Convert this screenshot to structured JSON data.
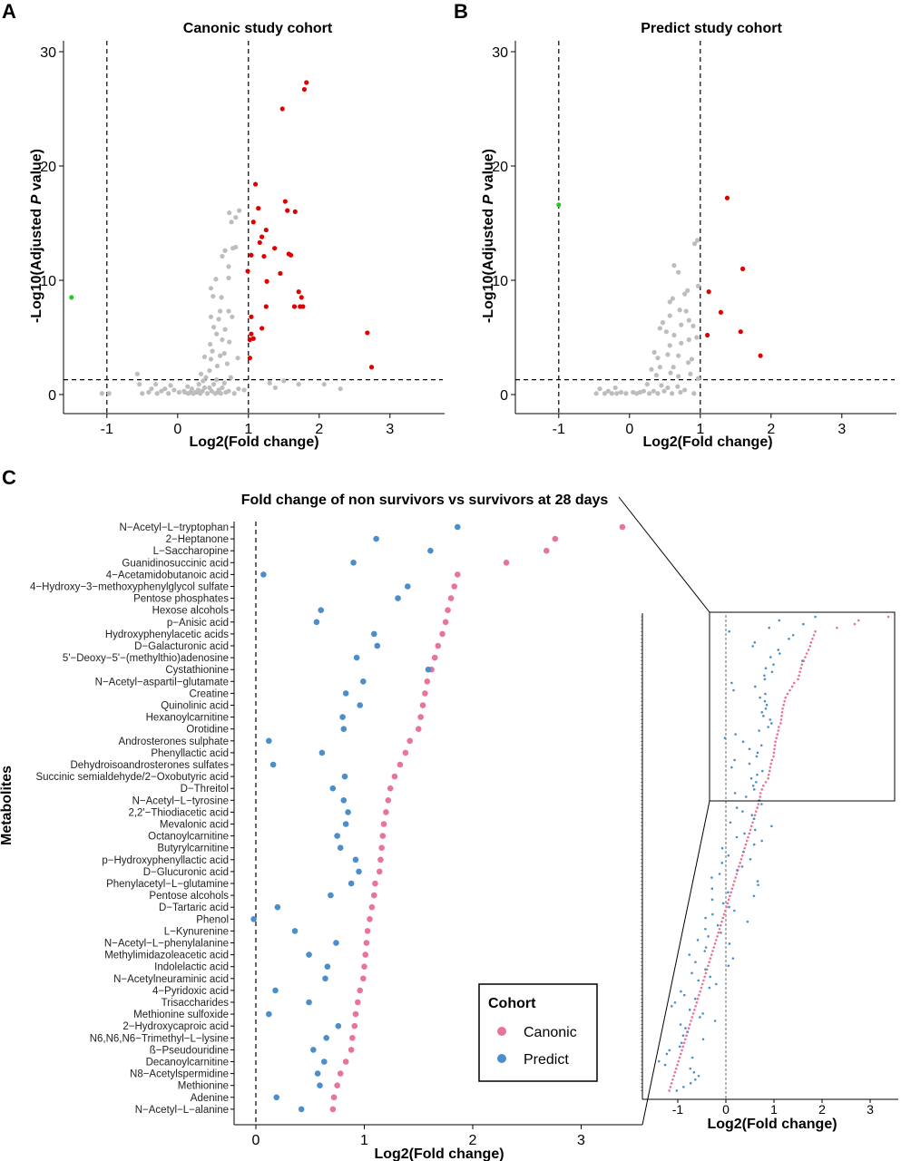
{
  "colors": {
    "up": "#E00000",
    "down": "#22CC22",
    "ns": "#BDBDBD",
    "canonic": "#E8749A",
    "predict": "#4A8FCB"
  },
  "panels": {
    "A": {
      "letter": "A",
      "title": "Canonic study cohort",
      "xlabel": "Log2(Fold change)",
      "ylabel_pre": "-Log10(Adjusted ",
      "ylabel_p": "P",
      "ylabel_post": " value)"
    },
    "B": {
      "letter": "B",
      "title": "Predict study cohort",
      "xlabel": "Log2(Fold change)",
      "ylabel_pre": "-Log10(Adjusted ",
      "ylabel_p": "P",
      "ylabel_post": " value)"
    },
    "C": {
      "letter": "C",
      "title": "Fold change of non survivors vs survivors at 28 days",
      "xlabel": "Log2(Fold change)",
      "ylabel": "Metabolites",
      "inset_xlabel": "Log2(Fold change)"
    }
  },
  "legend": {
    "title": "Cohort",
    "items": [
      "Canonic",
      "Predict"
    ]
  },
  "chart_data": [
    {
      "panel": "A",
      "type": "scatter",
      "title": "Canonic study cohort",
      "xlabel": "Log2(Fold change)",
      "ylabel": "-Log10(Adjusted P value)",
      "xlim": [
        -1.7,
        3.6
      ],
      "ylim": [
        -1.5,
        31
      ],
      "xticks": [
        "-1",
        "0",
        "1",
        "2",
        "3"
      ],
      "yticks": [
        "0",
        "10",
        "20",
        "30"
      ],
      "thresholds": {
        "x": [
          -1,
          1
        ],
        "y": 1.3
      },
      "series": [
        {
          "name": "up",
          "points": [
            [
              1.82,
              27.3
            ],
            [
              1.79,
              26.7
            ],
            [
              1.48,
              25
            ],
            [
              1.1,
              18.4
            ],
            [
              1.52,
              16.9
            ],
            [
              1.14,
              16.3
            ],
            [
              1.55,
              16.1
            ],
            [
              1.66,
              16
            ],
            [
              1.07,
              15.1
            ],
            [
              1.25,
              14.4
            ],
            [
              1.19,
              13.8
            ],
            [
              1.37,
              12.8
            ],
            [
              1.16,
              13.3
            ],
            [
              1.04,
              12.2
            ],
            [
              1.22,
              12.1
            ],
            [
              1.57,
              12.3
            ],
            [
              1.6,
              12.2
            ],
            [
              1.45,
              10.6
            ],
            [
              1.26,
              9.9
            ],
            [
              0.99,
              10.8
            ],
            [
              1.71,
              9
            ],
            [
              1.75,
              8.5
            ],
            [
              1.65,
              7.7
            ],
            [
              1.73,
              7.7
            ],
            [
              1.77,
              7.7
            ],
            [
              1.25,
              7.7
            ],
            [
              1.04,
              6.8
            ],
            [
              1.19,
              5.8
            ],
            [
              1.04,
              5.3
            ],
            [
              1.02,
              4.8
            ],
            [
              1.07,
              4.9
            ],
            [
              1.02,
              3.2
            ],
            [
              2.68,
              5.4
            ],
            [
              2.74,
              2.4
            ]
          ]
        },
        {
          "name": "down",
          "points": [
            [
              -1.5,
              8.5
            ]
          ]
        },
        {
          "name": "ns",
          "points": [
            [
              0.87,
              16.1
            ],
            [
              0.73,
              15.9
            ],
            [
              0.82,
              15.5
            ],
            [
              0.76,
              15.1
            ],
            [
              0.67,
              12.6
            ],
            [
              0.78,
              12.8
            ],
            [
              0.82,
              12.9
            ],
            [
              0.63,
              12.1
            ],
            [
              0.72,
              11.2
            ],
            [
              0.72,
              10.2
            ],
            [
              0.54,
              10.1
            ],
            [
              0.47,
              9.3
            ],
            [
              0.5,
              8.6
            ],
            [
              0.62,
              8.5
            ],
            [
              0.6,
              7.3
            ],
            [
              0.72,
              7.3
            ],
            [
              0.58,
              6.6
            ],
            [
              0.77,
              6.8
            ],
            [
              0.47,
              6.8
            ],
            [
              0.51,
              5.9
            ],
            [
              0.67,
              5.7
            ],
            [
              0.55,
              5.3
            ],
            [
              0.63,
              4.8
            ],
            [
              0.46,
              4.4
            ],
            [
              0.73,
              4.6
            ],
            [
              0.49,
              3.8
            ],
            [
              0.6,
              3.4
            ],
            [
              0.66,
              3.6
            ],
            [
              0.85,
              3.2
            ],
            [
              0.38,
              3.3
            ],
            [
              0.47,
              3.1
            ],
            [
              0.7,
              2.7
            ],
            [
              0.56,
              2.5
            ],
            [
              0.45,
              2.1
            ],
            [
              0.33,
              1.8
            ],
            [
              0.4,
              1.5
            ],
            [
              0.55,
              1.3
            ],
            [
              0.36,
              1.2
            ],
            [
              0.66,
              1
            ],
            [
              0.75,
              1.5
            ],
            [
              0.3,
              0.9
            ],
            [
              0.38,
              0.6
            ],
            [
              0.45,
              0.6
            ],
            [
              0.51,
              0.9
            ],
            [
              0.58,
              0.4
            ],
            [
              0.63,
              0.6
            ],
            [
              0.72,
              0.3
            ],
            [
              0.86,
              0.5
            ],
            [
              0.94,
              0.4
            ],
            [
              0.29,
              0.4
            ],
            [
              0.25,
              0.2
            ],
            [
              0.2,
              0.5
            ],
            [
              0.14,
              0.7
            ],
            [
              0.09,
              0.3
            ],
            [
              0.02,
              0.2
            ],
            [
              -0.05,
              0.4
            ],
            [
              -0.1,
              0.8
            ],
            [
              -0.13,
              0.1
            ],
            [
              -0.18,
              0.5
            ],
            [
              -0.23,
              0.3
            ],
            [
              -0.29,
              0.1
            ],
            [
              -0.31,
              0.9
            ],
            [
              -0.37,
              0.5
            ],
            [
              -0.41,
              0.2
            ],
            [
              -0.5,
              0.1
            ],
            [
              -0.54,
              0.9
            ],
            [
              -0.57,
              1.8
            ],
            [
              -0.97,
              0.1
            ],
            [
              -1.07,
              0.1
            ],
            [
              1.3,
              1
            ],
            [
              1.38,
              0.6
            ],
            [
              1.5,
              1.2
            ],
            [
              1.71,
              0.9
            ],
            [
              2.07,
              0.9
            ],
            [
              2.3,
              0.5
            ],
            [
              0.1,
              0.2
            ],
            [
              0.15,
              0.1
            ],
            [
              0.18,
              0.2
            ],
            [
              0.22,
              0.1
            ],
            [
              0.27,
              0.2
            ],
            [
              0.32,
              0.1
            ],
            [
              0.35,
              0.3
            ],
            [
              0.42,
              0.1
            ],
            [
              0.48,
              0.3
            ],
            [
              0.53,
              0.1
            ],
            [
              0.57,
              0.2
            ],
            [
              0.61,
              0.1
            ],
            [
              0.68,
              0.2
            ],
            [
              0.8,
              0.1
            ]
          ]
        }
      ]
    },
    {
      "panel": "B",
      "type": "scatter",
      "title": "Predict study cohort",
      "xlabel": "Log2(Fold change)",
      "ylabel": "-Log10(Adjusted P value)",
      "xlim": [
        -1.7,
        3.6
      ],
      "ylim": [
        -1.5,
        31
      ],
      "xticks": [
        "-1",
        "0",
        "1",
        "2",
        "3"
      ],
      "yticks": [
        "0",
        "10",
        "20",
        "30"
      ],
      "thresholds": {
        "x": [
          -1,
          1
        ],
        "y": 1.3
      },
      "series": [
        {
          "name": "up",
          "points": [
            [
              1.38,
              17.2
            ],
            [
              1.6,
              11
            ],
            [
              1.12,
              9
            ],
            [
              1.29,
              7.2
            ],
            [
              1.57,
              5.5
            ],
            [
              1.1,
              5.2
            ],
            [
              1.85,
              3.4
            ]
          ]
        },
        {
          "name": "down",
          "points": [
            [
              -1.0,
              16.6
            ]
          ]
        },
        {
          "name": "ns",
          "points": [
            [
              0.96,
              13.5
            ],
            [
              0.92,
              13.2
            ],
            [
              0.63,
              11.3
            ],
            [
              0.69,
              10.7
            ],
            [
              0.97,
              9.5
            ],
            [
              0.82,
              9.1
            ],
            [
              0.61,
              8.4
            ],
            [
              0.57,
              8.1
            ],
            [
              0.78,
              8.8
            ],
            [
              0.71,
              7.4
            ],
            [
              0.8,
              7.3
            ],
            [
              0.57,
              6.9
            ],
            [
              0.84,
              6.5
            ],
            [
              0.73,
              6.1
            ],
            [
              0.47,
              6.3
            ],
            [
              0.9,
              6
            ],
            [
              0.43,
              5.8
            ],
            [
              0.52,
              5.5
            ],
            [
              0.63,
              5.2
            ],
            [
              0.84,
              4.8
            ],
            [
              0.95,
              5
            ],
            [
              0.73,
              4.5
            ],
            [
              0.57,
              4.3
            ],
            [
              0.35,
              3.7
            ],
            [
              0.4,
              3.2
            ],
            [
              0.54,
              3.5
            ],
            [
              0.69,
              3.4
            ],
            [
              0.88,
              3.1
            ],
            [
              0.83,
              2.8
            ],
            [
              0.62,
              2.4
            ],
            [
              0.43,
              2.4
            ],
            [
              0.31,
              2.2
            ],
            [
              0.58,
              1.9
            ],
            [
              0.38,
              1.7
            ],
            [
              0.69,
              1.6
            ],
            [
              0.86,
              1.8
            ],
            [
              0.97,
              1.4
            ],
            [
              0.25,
              0.9
            ],
            [
              0.54,
              0.6
            ],
            [
              0.45,
              0.8
            ],
            [
              0.68,
              0.7
            ],
            [
              0.78,
              0.4
            ],
            [
              0.2,
              0.3
            ],
            [
              0.1,
              0.1
            ],
            [
              0.05,
              0.2
            ],
            [
              -0.05,
              0.1
            ],
            [
              -0.12,
              0.2
            ],
            [
              -0.18,
              0.1
            ],
            [
              -0.25,
              0.1
            ],
            [
              -0.3,
              0.3
            ],
            [
              -0.35,
              0.1
            ],
            [
              -0.42,
              0.5
            ],
            [
              -0.47,
              0.1
            ],
            [
              -0.2,
              0.6
            ],
            [
              0.15,
              0.2
            ],
            [
              0.28,
              0.1
            ],
            [
              0.34,
              0.3
            ],
            [
              0.4,
              0.1
            ],
            [
              0.49,
              0.3
            ],
            [
              0.6,
              0.1
            ],
            [
              0.72,
              0.2
            ],
            [
              0.91,
              0.1
            ]
          ]
        }
      ]
    },
    {
      "panel": "C",
      "type": "scatter",
      "title": "Fold change of non survivors vs survivors at 28 days",
      "xlabel": "Log2(Fold change)",
      "ylabel": "Metabolites",
      "xlim": [
        -0.15,
        3.45
      ],
      "xticks": [
        "0",
        "1",
        "2",
        "3"
      ],
      "categories": [
        "N−Acetyl−L−tryptophan",
        "2−Heptanone",
        "L−Saccharopine",
        "Guanidinosuccinic acid",
        "4−Acetamidobutanoic acid",
        "4−Hydroxy−3−methoxyphenylglycol sulfate",
        "Pentose phosphates",
        "Hexose alcohols",
        "p−Anisic acid",
        "Hydroxyphenylacetic acids",
        "D−Galacturonic acid",
        "5'−Deoxy−5'−(methylthio)adenosine",
        "Cystathionine",
        "N−Acetyl−aspartil−glutamate",
        "Creatine",
        "Quinolinic acid",
        "Hexanoylcarnitine",
        "Orotidine",
        "Androsterones sulphate",
        "Phenyllactic acid",
        "Dehydroisoandrosterones sulfates",
        "Succinic semialdehyde/2−Oxobutyric acid",
        "D−Threitol",
        "N−Acetyl−L−tyrosine",
        "2,2'−Thiodiacetic acid",
        "Mevalonic acid",
        "Octanoylcarnitine",
        "Butyrylcarnitine",
        "p−Hydroxyphenyllactic acid",
        "D−Glucuronic acid",
        "Phenylacetyl−L−glutamine",
        "Pentose alcohols",
        "D−Tartaric acid",
        "Phenol",
        "L−Kynurenine",
        "N−Acetyl−L−phenylalanine",
        "Methylimidazoleacetic acid",
        "Indolelactic acid",
        "N−Acetylneuraminic acid",
        "4−Pyridoxic acid",
        "Trisaccharides",
        "Methionine sulfoxide",
        "2−Hydroxycaproic acid",
        "N6,N6,N6−Trimethyl−L−lysine",
        "ß−Pseudouridine",
        "Decanoylcarnitine",
        "N8−Acetylspermidine",
        "Methionine",
        "Adenine",
        "N−Acetyl−L−alanine"
      ],
      "series": [
        {
          "name": "Canonic",
          "values": [
            3.38,
            2.76,
            2.68,
            2.31,
            1.86,
            1.83,
            1.8,
            1.77,
            1.75,
            1.72,
            1.68,
            1.65,
            1.62,
            1.58,
            1.56,
            1.54,
            1.52,
            1.5,
            1.42,
            1.38,
            1.33,
            1.28,
            1.24,
            1.22,
            1.2,
            1.18,
            1.17,
            1.16,
            1.15,
            1.14,
            1.1,
            1.09,
            1.07,
            1.05,
            1.03,
            1.02,
            1.01,
            1.0,
            0.99,
            0.96,
            0.94,
            0.92,
            0.91,
            0.89,
            0.88,
            0.83,
            0.78,
            0.75,
            0.72,
            0.71
          ]
        },
        {
          "name": "Predict",
          "values": [
            1.86,
            1.11,
            1.61,
            0.9,
            0.07,
            1.4,
            1.31,
            0.6,
            0.56,
            1.09,
            1.12,
            0.93,
            1.59,
            0.99,
            0.83,
            0.96,
            0.8,
            0.81,
            0.12,
            0.61,
            0.16,
            0.82,
            0.71,
            0.81,
            0.85,
            0.83,
            0.75,
            0.78,
            0.92,
            0.95,
            0.88,
            0.69,
            0.2,
            -0.02,
            0.36,
            0.74,
            0.49,
            0.66,
            0.64,
            0.18,
            0.49,
            0.12,
            0.76,
            0.65,
            0.53,
            0.63,
            0.57,
            0.59,
            0.19,
            0.42
          ]
        }
      ]
    },
    {
      "panel": "C-inset",
      "type": "scatter",
      "xlabel": "Log2(Fold change)",
      "xlim": [
        -1.6,
        3.6
      ],
      "xticks": [
        "-1",
        "0",
        "1",
        "2",
        "3"
      ],
      "series": [
        {
          "name": "Canonic"
        },
        {
          "name": "Predict"
        }
      ]
    }
  ]
}
